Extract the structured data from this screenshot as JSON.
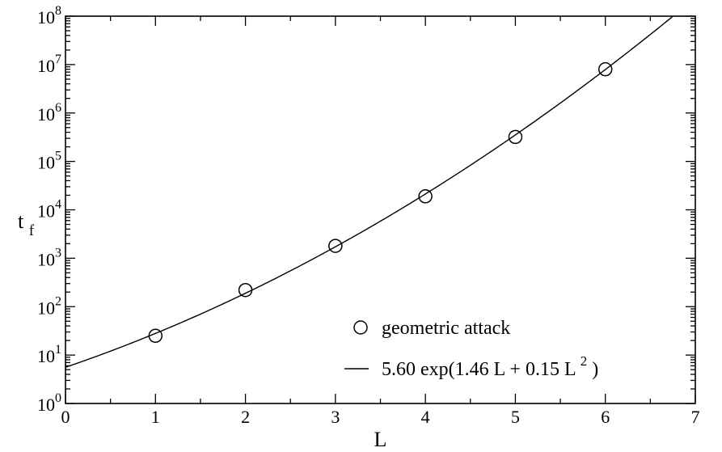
{
  "chart_data": {
    "type": "scatter",
    "title": "",
    "xlabel": "L",
    "ylabel": {
      "base": "t",
      "subscript": "f"
    },
    "xlim": [
      0,
      7
    ],
    "ylim": [
      1,
      100000000
    ],
    "yscale": "log",
    "grid": false,
    "legend_position": "bottom-right",
    "x_ticks": [
      {
        "value": 0,
        "label": "0"
      },
      {
        "value": 1,
        "label": "1"
      },
      {
        "value": 2,
        "label": "2"
      },
      {
        "value": 3,
        "label": "3"
      },
      {
        "value": 4,
        "label": "4"
      },
      {
        "value": 5,
        "label": "5"
      },
      {
        "value": 6,
        "label": "6"
      },
      {
        "value": 7,
        "label": "7"
      }
    ],
    "y_ticks": [
      {
        "value": 1,
        "base": "10",
        "exponent": "0"
      },
      {
        "value": 10,
        "base": "10",
        "exponent": "1"
      },
      {
        "value": 100,
        "base": "10",
        "exponent": "2"
      },
      {
        "value": 1000,
        "base": "10",
        "exponent": "3"
      },
      {
        "value": 10000,
        "base": "10",
        "exponent": "4"
      },
      {
        "value": 100000,
        "base": "10",
        "exponent": "5"
      },
      {
        "value": 1000000,
        "base": "10",
        "exponent": "6"
      },
      {
        "value": 10000000,
        "base": "10",
        "exponent": "7"
      },
      {
        "value": 100000000,
        "base": "10",
        "exponent": "8"
      }
    ],
    "series": [
      {
        "name": "geometric attack",
        "kind": "markers",
        "marker": "open-circle",
        "color": "#000000",
        "x": [
          1,
          2,
          3,
          4,
          5,
          6
        ],
        "y": [
          25,
          220,
          1800,
          19000,
          320000,
          8000000
        ]
      },
      {
        "name": "5.60 exp(1.46 L + 0.15 L²)",
        "kind": "line",
        "color": "#000000",
        "formula": {
          "a": 5.6,
          "b": 1.46,
          "c": 0.15
        }
      }
    ],
    "legend": [
      {
        "marker": "open-circle",
        "label": "geometric attack"
      },
      {
        "marker": "line",
        "label_parts": [
          "5.60 exp(1.46 L + 0.15 L",
          "2",
          ")"
        ]
      }
    ]
  }
}
